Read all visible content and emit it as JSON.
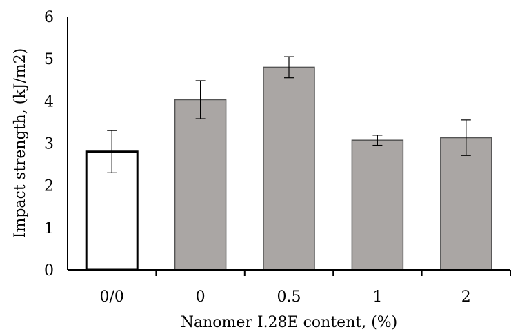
{
  "chart_data": {
    "type": "bar",
    "title": "",
    "xlabel": "Nanomer I.28E content, (%)",
    "ylabel": "Impact strength, (kJ/m2)",
    "categories": [
      "0/0",
      "0",
      "0.5",
      "1",
      "2"
    ],
    "values": [
      2.8,
      4.03,
      4.8,
      3.07,
      3.13
    ],
    "errors": [
      0.5,
      0.45,
      0.25,
      0.12,
      0.42
    ],
    "ylim": [
      0,
      6
    ],
    "yticks": [
      "0",
      "1",
      "2",
      "3",
      "4",
      "5",
      "6"
    ],
    "grid": false,
    "legend": "none",
    "bar_fills": [
      "#ffffff",
      "#aaa6a4",
      "#aaa6a4",
      "#aaa6a4",
      "#aaa6a4"
    ],
    "bar_strokes": [
      "#000000",
      "#555555",
      "#555555",
      "#555555",
      "#555555"
    ]
  }
}
